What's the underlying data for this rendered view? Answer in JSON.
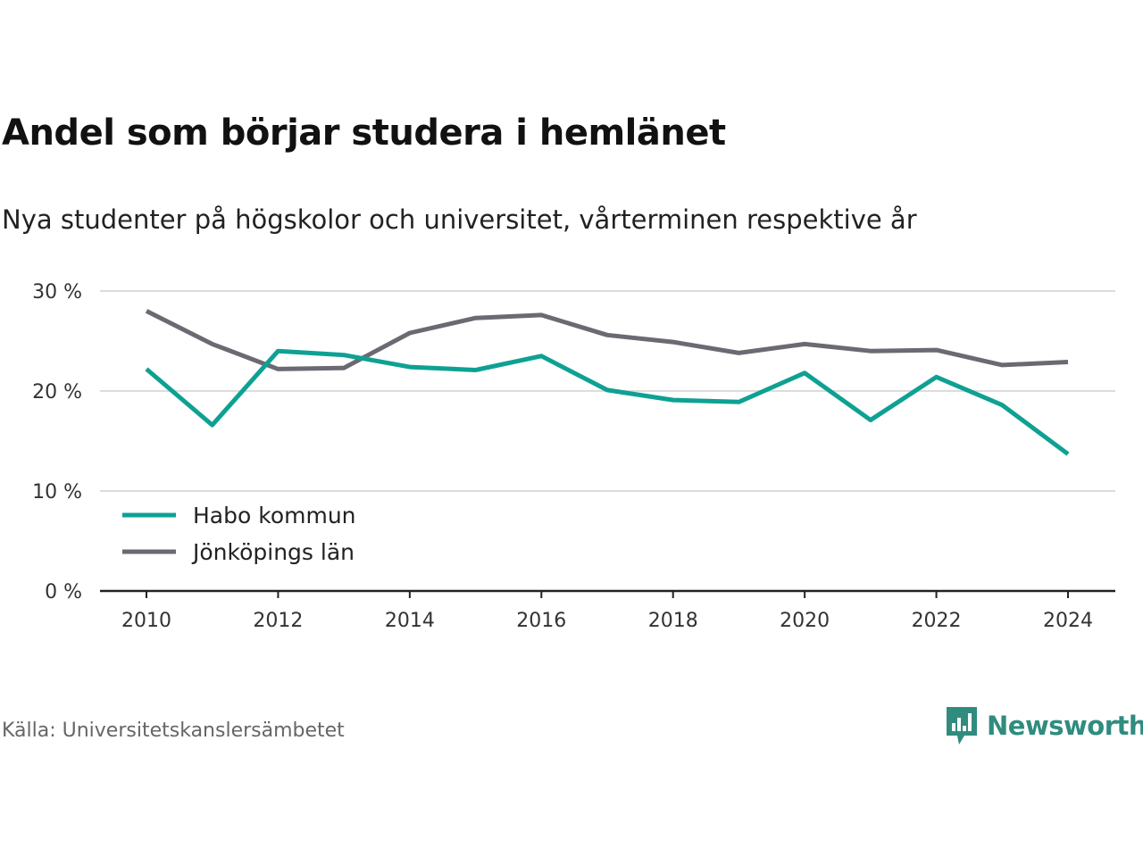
{
  "chart_data": {
    "type": "line",
    "title": "Andel som börjar studera i hemlänet",
    "subtitle": "Nya studenter på högskolor och universitet, vårterminen respektive år",
    "x": [
      2010,
      2011,
      2012,
      2013,
      2014,
      2015,
      2016,
      2017,
      2018,
      2019,
      2020,
      2021,
      2022,
      2023,
      2024
    ],
    "x_ticks": [
      "2010",
      "2012",
      "2014",
      "2016",
      "2018",
      "2020",
      "2022",
      "2024"
    ],
    "y_ticks": [
      "0 %",
      "10 %",
      "20 %",
      "30 %"
    ],
    "ylim": [
      0,
      30
    ],
    "grid": true,
    "legend_position": "bottom-left",
    "series": [
      {
        "name": "Habo kommun",
        "color": "#0ea193",
        "values": [
          22.2,
          16.6,
          24.0,
          23.6,
          22.4,
          22.1,
          23.5,
          20.1,
          19.1,
          18.9,
          21.8,
          17.1,
          21.4,
          18.6,
          13.7
        ]
      },
      {
        "name": "Jönköpings län",
        "color": "#6b6a72",
        "values": [
          28.0,
          24.7,
          22.2,
          22.3,
          25.8,
          27.3,
          27.6,
          25.6,
          24.9,
          23.8,
          24.7,
          24.0,
          24.1,
          22.6,
          22.9
        ]
      }
    ]
  },
  "footer": {
    "source": "Källa: Universitetskanslersämbetet",
    "brand": "Newsworthy",
    "brand_color": "#2f8c7f"
  }
}
